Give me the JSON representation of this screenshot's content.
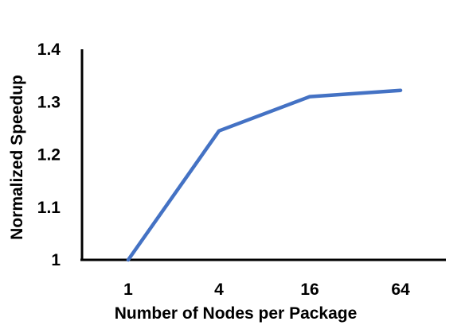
{
  "chart_data": {
    "type": "line",
    "title": "",
    "xlabel": "Number of Nodes per Package",
    "ylabel": "Normalized Speedup",
    "categories": [
      "1",
      "4",
      "16",
      "64"
    ],
    "y_ticks": [
      "1",
      "1.1",
      "1.2",
      "1.3",
      "1.4"
    ],
    "ylim": [
      1,
      1.4
    ],
    "series": [
      {
        "values": [
          1.0,
          1.245,
          1.31,
          1.322
        ]
      }
    ],
    "grid": false,
    "legend": "none",
    "colors": {
      "line": "#4472C4",
      "axis": "#000000"
    }
  }
}
